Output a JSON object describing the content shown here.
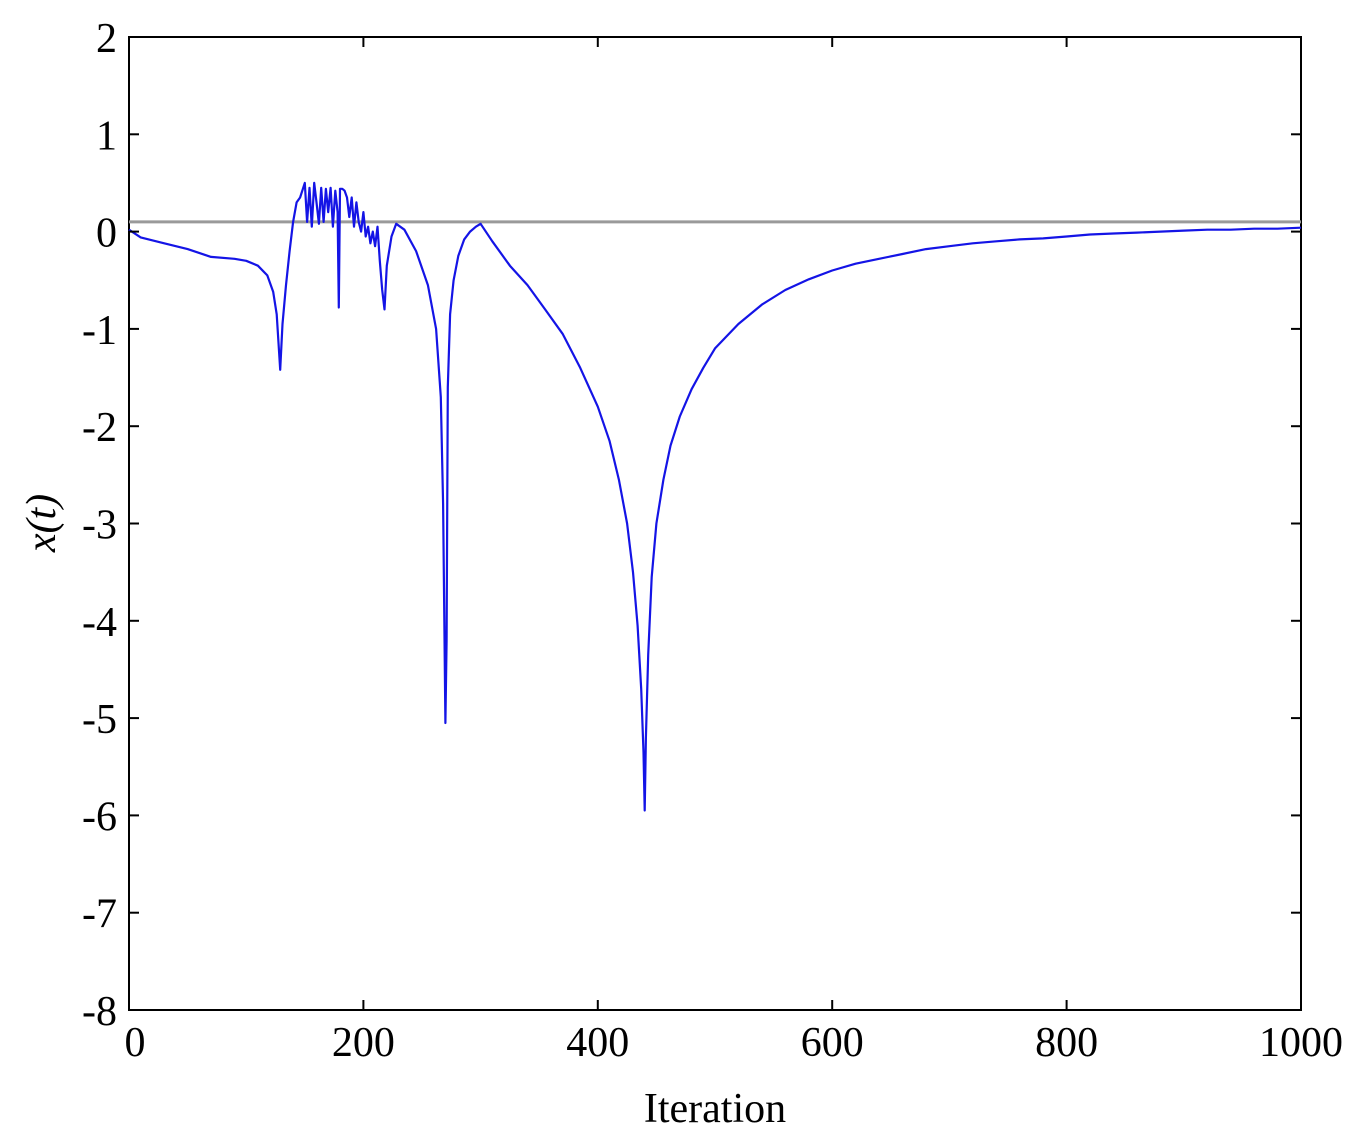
{
  "chart_data": {
    "type": "line",
    "xlabel": "Iteration",
    "ylabel": "x(t)",
    "xlim": [
      0,
      1000
    ],
    "ylim": [
      -8,
      2
    ],
    "xticks": [
      0,
      200,
      400,
      600,
      800,
      1000
    ],
    "yticks": [
      2,
      1,
      0,
      -1,
      -2,
      -3,
      -4,
      -5,
      -6,
      -7,
      -8
    ],
    "grid": false,
    "legend": "none",
    "reference_line": {
      "y": 0.1,
      "color": "#9a9a9a"
    },
    "series": [
      {
        "color": "#1414e6",
        "x": [
          0,
          10,
          30,
          50,
          70,
          90,
          100,
          110,
          118,
          123,
          126,
          129,
          131,
          134,
          137,
          140,
          143,
          146,
          150,
          152,
          154,
          156,
          158,
          160,
          162,
          164,
          166,
          168,
          170,
          172,
          174,
          176,
          178,
          179,
          180,
          182,
          184,
          186,
          188,
          190,
          192,
          194,
          196,
          198,
          200,
          202,
          204,
          206,
          208,
          210,
          212,
          214,
          216,
          218,
          220,
          224,
          228,
          235,
          245,
          255,
          262,
          266,
          268,
          270,
          271,
          272,
          274,
          277,
          281,
          286,
          291,
          296,
          300,
          310,
          325,
          340,
          355,
          370,
          385,
          400,
          410,
          418,
          425,
          430,
          434,
          437,
          439,
          440,
          441,
          443,
          446,
          450,
          456,
          462,
          470,
          480,
          490,
          500,
          520,
          540,
          560,
          580,
          600,
          620,
          640,
          660,
          680,
          700,
          720,
          740,
          760,
          780,
          800,
          820,
          840,
          860,
          880,
          900,
          920,
          940,
          960,
          980,
          1000
        ],
        "y": [
          0.02,
          -0.06,
          -0.12,
          -0.18,
          -0.26,
          -0.28,
          -0.3,
          -0.35,
          -0.45,
          -0.62,
          -0.85,
          -1.42,
          -0.95,
          -0.55,
          -0.2,
          0.1,
          0.3,
          0.35,
          0.5,
          0.1,
          0.45,
          0.05,
          0.5,
          0.3,
          0.08,
          0.45,
          0.1,
          0.44,
          0.2,
          0.45,
          0.05,
          0.42,
          0.2,
          -0.78,
          0.44,
          0.44,
          0.42,
          0.35,
          0.15,
          0.35,
          0.05,
          0.3,
          0.1,
          0.0,
          0.2,
          -0.05,
          0.05,
          -0.12,
          0.0,
          -0.15,
          0.05,
          -0.3,
          -0.6,
          -0.8,
          -0.35,
          -0.05,
          0.08,
          0.02,
          -0.2,
          -0.55,
          -1.0,
          -1.7,
          -2.8,
          -5.05,
          -4.2,
          -1.6,
          -0.85,
          -0.5,
          -0.25,
          -0.08,
          0.0,
          0.05,
          0.08,
          -0.1,
          -0.35,
          -0.55,
          -0.8,
          -1.05,
          -1.4,
          -1.8,
          -2.15,
          -2.55,
          -3.0,
          -3.5,
          -4.05,
          -4.7,
          -5.35,
          -5.95,
          -5.2,
          -4.35,
          -3.55,
          -3.0,
          -2.55,
          -2.2,
          -1.9,
          -1.62,
          -1.4,
          -1.2,
          -0.95,
          -0.75,
          -0.6,
          -0.49,
          -0.4,
          -0.33,
          -0.28,
          -0.23,
          -0.18,
          -0.15,
          -0.12,
          -0.1,
          -0.08,
          -0.07,
          -0.05,
          -0.03,
          -0.02,
          -0.01,
          0.0,
          0.01,
          0.02,
          0.02,
          0.03,
          0.03,
          0.04
        ]
      }
    ]
  }
}
